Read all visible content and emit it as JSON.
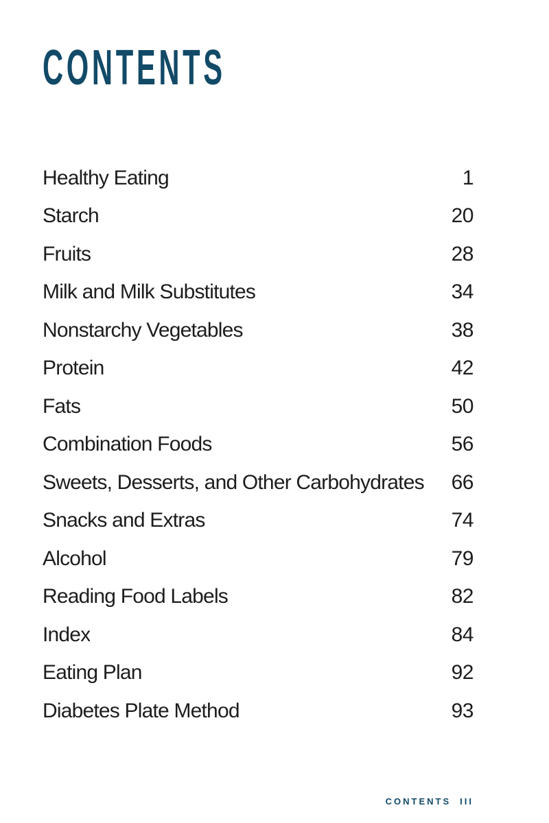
{
  "page": {
    "title": "CONTENTS",
    "colors": {
      "accent": "#124A68",
      "text": "#1D1D1D",
      "background": "#FFFFFF"
    },
    "toc": {
      "entries": [
        {
          "label": "Healthy Eating",
          "page": "1"
        },
        {
          "label": "Starch",
          "page": "20"
        },
        {
          "label": "Fruits",
          "page": "28"
        },
        {
          "label": "Milk and Milk Substitutes",
          "page": "34"
        },
        {
          "label": "Nonstarchy Vegetables",
          "page": "38"
        },
        {
          "label": "Protein",
          "page": "42"
        },
        {
          "label": "Fats",
          "page": "50"
        },
        {
          "label": "Combination Foods",
          "page": "56"
        },
        {
          "label": "Sweets, Desserts, and Other Carbohydrates",
          "page": "66"
        },
        {
          "label": "Snacks and Extras",
          "page": "74"
        },
        {
          "label": "Alcohol",
          "page": "79"
        },
        {
          "label": "Reading Food Labels",
          "page": "82"
        },
        {
          "label": "Index",
          "page": "84"
        },
        {
          "label": "Eating Plan",
          "page": "92"
        },
        {
          "label": "Diabetes Plate Method",
          "page": "93"
        }
      ]
    },
    "footer": {
      "section": "CONTENTS",
      "page_number": "III"
    }
  }
}
